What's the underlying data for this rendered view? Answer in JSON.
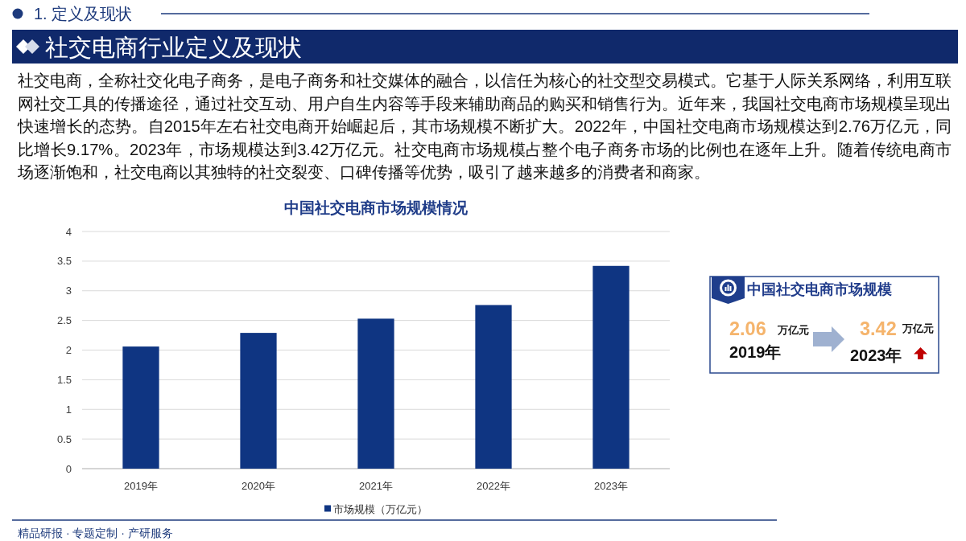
{
  "chart_data": [
    {
      "type": "bar",
      "title": "中国社交电商市场规模情况",
      "categories": [
        "2019年",
        "2020年",
        "2021年",
        "2022年",
        "2023年"
      ],
      "series": [
        {
          "name": "市场规模（万亿元）",
          "color": "#0f3582",
          "values": [
            2.06,
            2.29,
            2.53,
            2.76,
            3.42
          ]
        }
      ],
      "ylim": [
        0,
        4
      ],
      "yticks": [
        0,
        0.5,
        1,
        1.5,
        2,
        2.5,
        3,
        3.5,
        4
      ],
      "grid": "y",
      "legend": "bottom",
      "annotations": [
        "1. 定义及现状",
        "社交电商行业定义及现状",
        "社交电商，全称社交化电子商务，是电子商务和社交媒体的融合，以信任为核心的社交型交易模式。它基于人际关系网络，利用互联网社交工具的传播途径，通过社交互动、用户自生内容等手段来辅助商品的购买和销售行为。近年来，我国社交电商市场规模呈现出快速增长的态势。自2015年左右社交电商开始崛起后，其市场规模不断扩大。2022年，中国社交电商市场规模达到2.76万亿元，同比增长9.17%。2023年，市场规模达到3.42万亿元。社交电商市场规模占整个电子商务市场的比例也在逐年上升。随着传统电商市场逐渐饱和，社交电商以其独特的社交裂变、口碑传播等优势，吸引了越来越多的消费者和商家。",
        "精品研报 · 专题定制 · 产研服务"
      ]
    },
    {
      "type": "other",
      "title": "中国社交电商市场规模",
      "annotations": [
        "2.06",
        "万亿元",
        "2019年",
        "3.42",
        "万亿元",
        "2023年"
      ]
    }
  ]
}
